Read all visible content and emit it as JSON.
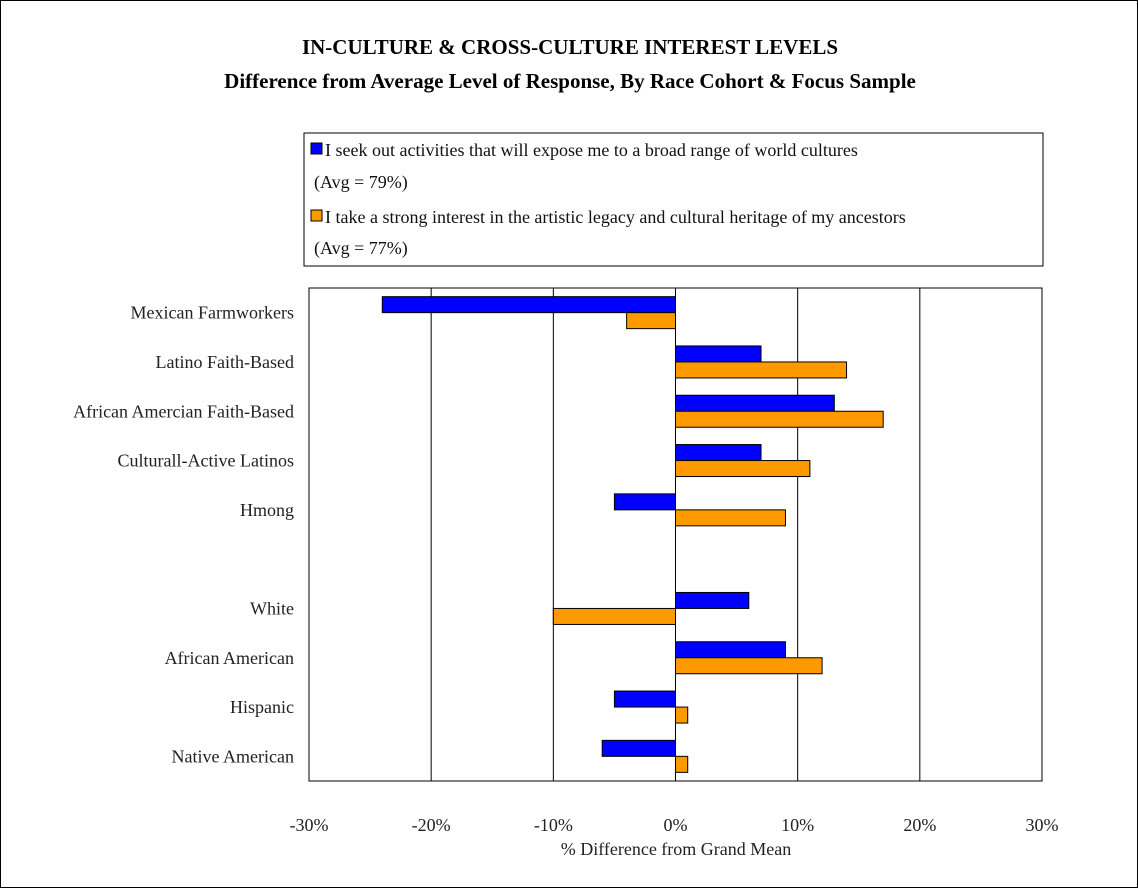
{
  "chart_data": {
    "type": "bar",
    "orientation": "horizontal",
    "title": "IN-CULTURE & CROSS-CULTURE INTEREST LEVELS",
    "subtitle": "Difference from Average Level of Response, By Race Cohort & Focus Sample",
    "xlabel": "% Difference from Grand Mean",
    "ylabel": "",
    "xlim": [
      -30,
      30
    ],
    "x_ticks": [
      -30,
      -20,
      -10,
      0,
      10,
      20,
      30
    ],
    "x_tick_labels": [
      "-30%",
      "-20%",
      "-10%",
      "0%",
      "10%",
      "20%",
      "30%"
    ],
    "grid": "vertical",
    "legend_position": "top",
    "categories": [
      "Mexican Farmworkers",
      "Latino Faith-Based",
      "African Amercian Faith-Based",
      "Culturall-Active Latinos",
      "Hmong",
      "",
      "White",
      "African American",
      "Hispanic",
      "Native American"
    ],
    "series": [
      {
        "name": "I seek out activities that will expose me to a broad range of world cultures",
        "name_line2": "(Avg = 79%)",
        "color": "#0000ff",
        "values": [
          -24,
          7,
          13,
          7,
          -5,
          null,
          6,
          9,
          -5,
          -6
        ]
      },
      {
        "name": "I take a strong interest in the artistic legacy and cultural heritage of my ancestors",
        "name_line2": "(Avg = 77%)",
        "color": "#ff9900",
        "values": [
          -4,
          14,
          17,
          11,
          9,
          null,
          -10,
          12,
          1,
          1
        ]
      }
    ]
  }
}
